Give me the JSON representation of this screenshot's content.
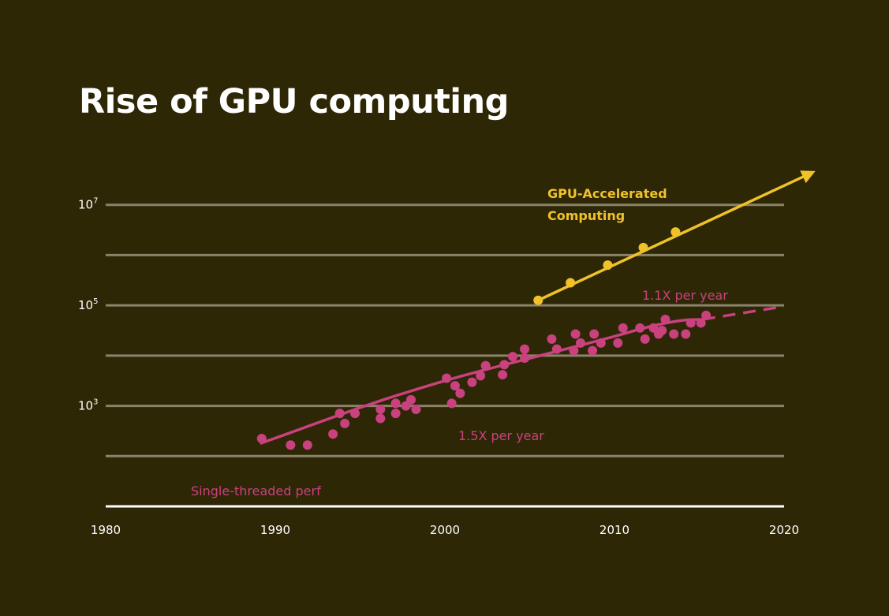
{
  "title": "Rise of GPU computing",
  "chart_data": {
    "type": "scatter",
    "title": "Rise of GPU computing",
    "xlabel": "",
    "ylabel": "",
    "xlim": [
      1980,
      2020
    ],
    "ylim_log10": [
      1,
      8
    ],
    "y_scale": "log",
    "grid": true,
    "x_ticks": [
      "1980",
      "1990",
      "2000",
      "2010",
      "2020"
    ],
    "y_ticks": [
      {
        "base": "10",
        "exp": "7",
        "log10": 7
      },
      {
        "base": "10",
        "exp": "5",
        "log10": 5
      },
      {
        "base": "10",
        "exp": "3",
        "log10": 3
      }
    ],
    "gridlines_log10": [
      7,
      6,
      5,
      4,
      3,
      2
    ],
    "colors": {
      "gpu": "#f0c22a",
      "cpu": "#c9417e",
      "grid": "#8a836a",
      "axis": "#ffffff",
      "background": "#2e2706"
    },
    "annotations": {
      "gpu_line1": "GPU-Accelerated",
      "gpu_line2": "Computing",
      "cpu_label": "Single-threaded perf",
      "rate_early": "1.5X per year",
      "rate_late": "1.1X per year"
    },
    "gpu_series": {
      "points": [
        {
          "x": 2005.5,
          "y": 5.1
        },
        {
          "x": 2007.4,
          "y": 5.45
        },
        {
          "x": 2009.6,
          "y": 5.8
        },
        {
          "x": 2011.7,
          "y": 6.15
        },
        {
          "x": 2013.6,
          "y": 6.46
        }
      ],
      "trend_end": {
        "x": 2021.7,
        "y": 7.65
      }
    },
    "cpu_series": {
      "points": [
        {
          "x": 1989.2,
          "y": 2.35
        },
        {
          "x": 1990.9,
          "y": 2.22
        },
        {
          "x": 1991.9,
          "y": 2.22
        },
        {
          "x": 1993.4,
          "y": 2.44
        },
        {
          "x": 1993.8,
          "y": 2.85
        },
        {
          "x": 1994.1,
          "y": 2.65
        },
        {
          "x": 1994.7,
          "y": 2.85
        },
        {
          "x": 1996.2,
          "y": 2.75
        },
        {
          "x": 1996.2,
          "y": 2.93
        },
        {
          "x": 1997.1,
          "y": 2.85
        },
        {
          "x": 1997.1,
          "y": 3.05
        },
        {
          "x": 1997.7,
          "y": 3.0
        },
        {
          "x": 1998.0,
          "y": 3.12
        },
        {
          "x": 1998.3,
          "y": 2.93
        },
        {
          "x": 2000.1,
          "y": 3.55
        },
        {
          "x": 2000.4,
          "y": 3.05
        },
        {
          "x": 2000.6,
          "y": 3.4
        },
        {
          "x": 2000.9,
          "y": 3.25
        },
        {
          "x": 2001.6,
          "y": 3.47
        },
        {
          "x": 2002.1,
          "y": 3.6
        },
        {
          "x": 2002.4,
          "y": 3.8
        },
        {
          "x": 2003.4,
          "y": 3.62
        },
        {
          "x": 2003.5,
          "y": 3.82
        },
        {
          "x": 2004.0,
          "y": 3.98
        },
        {
          "x": 2004.7,
          "y": 4.13
        },
        {
          "x": 2004.7,
          "y": 3.95
        },
        {
          "x": 2006.3,
          "y": 4.33
        },
        {
          "x": 2006.6,
          "y": 4.13
        },
        {
          "x": 2007.6,
          "y": 4.1
        },
        {
          "x": 2007.7,
          "y": 4.43
        },
        {
          "x": 2008.0,
          "y": 4.25
        },
        {
          "x": 2008.7,
          "y": 4.1
        },
        {
          "x": 2008.8,
          "y": 4.43
        },
        {
          "x": 2009.2,
          "y": 4.25
        },
        {
          "x": 2010.2,
          "y": 4.25
        },
        {
          "x": 2010.5,
          "y": 4.55
        },
        {
          "x": 2011.5,
          "y": 4.55
        },
        {
          "x": 2011.8,
          "y": 4.33
        },
        {
          "x": 2012.3,
          "y": 4.55
        },
        {
          "x": 2012.6,
          "y": 4.43
        },
        {
          "x": 2012.8,
          "y": 4.5
        },
        {
          "x": 2013.0,
          "y": 4.72
        },
        {
          "x": 2013.5,
          "y": 4.43
        },
        {
          "x": 2014.2,
          "y": 4.43
        },
        {
          "x": 2014.5,
          "y": 4.65
        },
        {
          "x": 2015.1,
          "y": 4.65
        },
        {
          "x": 2015.4,
          "y": 4.8
        }
      ],
      "trend": [
        {
          "x": 1989.1,
          "y": 2.25
        },
        {
          "x": 1992.0,
          "y": 2.6
        },
        {
          "x": 1995.0,
          "y": 2.97
        },
        {
          "x": 1998.0,
          "y": 3.3
        },
        {
          "x": 2001.0,
          "y": 3.6
        },
        {
          "x": 2004.0,
          "y": 3.86
        },
        {
          "x": 2007.0,
          "y": 4.12
        },
        {
          "x": 2010.0,
          "y": 4.38
        },
        {
          "x": 2012.0,
          "y": 4.58
        },
        {
          "x": 2014.0,
          "y": 4.71
        },
        {
          "x": 2015.2,
          "y": 4.72
        }
      ],
      "projection": [
        {
          "x": 2015.2,
          "y": 4.72
        },
        {
          "x": 2020.0,
          "y": 4.98
        }
      ]
    }
  }
}
